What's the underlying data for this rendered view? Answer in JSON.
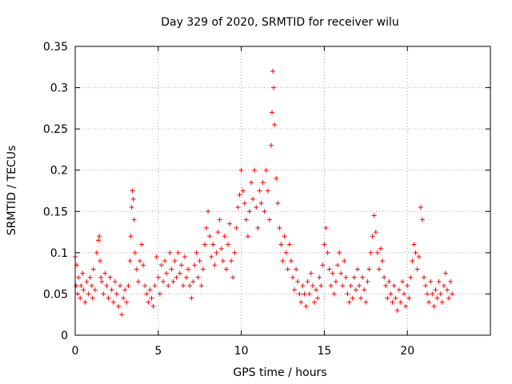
{
  "chart_data": {
    "type": "scatter",
    "title": "Day 329 of 2020, SRMTID for receiver wilu",
    "xlabel": "GPS time / hours",
    "ylabel": "SRMTID / TECUs",
    "xlim": [
      0,
      25
    ],
    "ylim": [
      0,
      0.35
    ],
    "xticks": [
      0,
      5,
      10,
      15,
      20
    ],
    "xtick_labels": [
      "0",
      "5",
      "10",
      "15",
      "20"
    ],
    "yticks": [
      0,
      0.05,
      0.1,
      0.15,
      0.2,
      0.25,
      0.3,
      0.35
    ],
    "ytick_labels": [
      "0",
      "0.05",
      "0.1",
      "0.15",
      "0.2",
      "0.25",
      "0.3",
      "0.35"
    ],
    "grid": true,
    "marker": "+",
    "color": "#ff0000",
    "series": [
      {
        "name": "SRMTID",
        "points": [
          [
            0.0,
            0.095
          ],
          [
            0.05,
            0.06
          ],
          [
            0.1,
            0.085
          ],
          [
            0.15,
            0.05
          ],
          [
            0.2,
            0.07
          ],
          [
            0.3,
            0.045
          ],
          [
            0.35,
            0.06
          ],
          [
            0.45,
            0.075
          ],
          [
            0.5,
            0.055
          ],
          [
            0.6,
            0.04
          ],
          [
            0.7,
            0.065
          ],
          [
            0.8,
            0.05
          ],
          [
            0.9,
            0.07
          ],
          [
            1.0,
            0.06
          ],
          [
            1.05,
            0.045
          ],
          [
            1.1,
            0.08
          ],
          [
            1.2,
            0.055
          ],
          [
            1.3,
            0.1
          ],
          [
            1.4,
            0.115
          ],
          [
            1.45,
            0.12
          ],
          [
            1.5,
            0.09
          ],
          [
            1.55,
            0.07
          ],
          [
            1.6,
            0.065
          ],
          [
            1.7,
            0.05
          ],
          [
            1.8,
            0.075
          ],
          [
            1.9,
            0.06
          ],
          [
            2.0,
            0.045
          ],
          [
            2.1,
            0.07
          ],
          [
            2.2,
            0.055
          ],
          [
            2.3,
            0.04
          ],
          [
            2.4,
            0.065
          ],
          [
            2.5,
            0.05
          ],
          [
            2.6,
            0.035
          ],
          [
            2.7,
            0.06
          ],
          [
            2.8,
            0.025
          ],
          [
            2.9,
            0.045
          ],
          [
            3.0,
            0.055
          ],
          [
            3.1,
            0.04
          ],
          [
            3.2,
            0.06
          ],
          [
            3.3,
            0.09
          ],
          [
            3.35,
            0.12
          ],
          [
            3.4,
            0.155
          ],
          [
            3.45,
            0.175
          ],
          [
            3.5,
            0.165
          ],
          [
            3.55,
            0.14
          ],
          [
            3.6,
            0.1
          ],
          [
            3.7,
            0.08
          ],
          [
            3.8,
            0.065
          ],
          [
            3.9,
            0.09
          ],
          [
            4.0,
            0.11
          ],
          [
            4.1,
            0.085
          ],
          [
            4.2,
            0.06
          ],
          [
            4.3,
            0.05
          ],
          [
            4.4,
            0.04
          ],
          [
            4.5,
            0.055
          ],
          [
            4.6,
            0.045
          ],
          [
            4.7,
            0.035
          ],
          [
            4.8,
            0.06
          ],
          [
            4.9,
            0.095
          ],
          [
            5.0,
            0.07
          ],
          [
            5.1,
            0.05
          ],
          [
            5.2,
            0.085
          ],
          [
            5.3,
            0.065
          ],
          [
            5.4,
            0.09
          ],
          [
            5.5,
            0.075
          ],
          [
            5.6,
            0.06
          ],
          [
            5.7,
            0.1
          ],
          [
            5.8,
            0.08
          ],
          [
            5.9,
            0.065
          ],
          [
            6.0,
            0.09
          ],
          [
            6.1,
            0.07
          ],
          [
            6.2,
            0.1
          ],
          [
            6.3,
            0.075
          ],
          [
            6.4,
            0.085
          ],
          [
            6.5,
            0.06
          ],
          [
            6.6,
            0.095
          ],
          [
            6.7,
            0.07
          ],
          [
            6.8,
            0.08
          ],
          [
            6.9,
            0.06
          ],
          [
            7.0,
            0.045
          ],
          [
            7.1,
            0.065
          ],
          [
            7.2,
            0.085
          ],
          [
            7.3,
            0.1
          ],
          [
            7.4,
            0.07
          ],
          [
            7.5,
            0.09
          ],
          [
            7.6,
            0.06
          ],
          [
            7.7,
            0.08
          ],
          [
            7.8,
            0.11
          ],
          [
            7.9,
            0.13
          ],
          [
            8.0,
            0.15
          ],
          [
            8.1,
            0.12
          ],
          [
            8.2,
            0.095
          ],
          [
            8.3,
            0.11
          ],
          [
            8.4,
            0.085
          ],
          [
            8.5,
            0.1
          ],
          [
            8.6,
            0.125
          ],
          [
            8.7,
            0.14
          ],
          [
            8.8,
            0.105
          ],
          [
            8.9,
            0.09
          ],
          [
            9.0,
            0.12
          ],
          [
            9.1,
            0.08
          ],
          [
            9.2,
            0.11
          ],
          [
            9.3,
            0.135
          ],
          [
            9.4,
            0.09
          ],
          [
            9.5,
            0.07
          ],
          [
            9.6,
            0.1
          ],
          [
            9.7,
            0.13
          ],
          [
            9.8,
            0.155
          ],
          [
            9.9,
            0.17
          ],
          [
            10.0,
            0.2
          ],
          [
            10.1,
            0.175
          ],
          [
            10.2,
            0.16
          ],
          [
            10.3,
            0.14
          ],
          [
            10.4,
            0.12
          ],
          [
            10.5,
            0.15
          ],
          [
            10.6,
            0.185
          ],
          [
            10.7,
            0.165
          ],
          [
            10.8,
            0.2
          ],
          [
            10.9,
            0.155
          ],
          [
            11.0,
            0.13
          ],
          [
            11.1,
            0.175
          ],
          [
            11.2,
            0.16
          ],
          [
            11.3,
            0.185
          ],
          [
            11.4,
            0.15
          ],
          [
            11.5,
            0.2
          ],
          [
            11.6,
            0.175
          ],
          [
            11.7,
            0.14
          ],
          [
            11.8,
            0.23
          ],
          [
            11.85,
            0.27
          ],
          [
            11.9,
            0.32
          ],
          [
            11.95,
            0.3
          ],
          [
            12.0,
            0.255
          ],
          [
            12.1,
            0.19
          ],
          [
            12.2,
            0.16
          ],
          [
            12.3,
            0.13
          ],
          [
            12.4,
            0.11
          ],
          [
            12.5,
            0.09
          ],
          [
            12.6,
            0.12
          ],
          [
            12.7,
            0.1
          ],
          [
            12.8,
            0.08
          ],
          [
            12.9,
            0.11
          ],
          [
            13.0,
            0.09
          ],
          [
            13.1,
            0.07
          ],
          [
            13.2,
            0.055
          ],
          [
            13.3,
            0.08
          ],
          [
            13.4,
            0.065
          ],
          [
            13.5,
            0.05
          ],
          [
            13.6,
            0.04
          ],
          [
            13.7,
            0.06
          ],
          [
            13.8,
            0.05
          ],
          [
            13.9,
            0.035
          ],
          [
            14.0,
            0.065
          ],
          [
            14.1,
            0.05
          ],
          [
            14.2,
            0.075
          ],
          [
            14.3,
            0.06
          ],
          [
            14.4,
            0.04
          ],
          [
            14.5,
            0.055
          ],
          [
            14.6,
            0.045
          ],
          [
            14.7,
            0.07
          ],
          [
            14.8,
            0.06
          ],
          [
            14.9,
            0.085
          ],
          [
            15.0,
            0.11
          ],
          [
            15.1,
            0.13
          ],
          [
            15.2,
            0.1
          ],
          [
            15.3,
            0.08
          ],
          [
            15.4,
            0.06
          ],
          [
            15.5,
            0.075
          ],
          [
            15.6,
            0.05
          ],
          [
            15.7,
            0.065
          ],
          [
            15.8,
            0.085
          ],
          [
            15.9,
            0.1
          ],
          [
            16.0,
            0.075
          ],
          [
            16.1,
            0.06
          ],
          [
            16.2,
            0.09
          ],
          [
            16.3,
            0.07
          ],
          [
            16.4,
            0.05
          ],
          [
            16.5,
            0.04
          ],
          [
            16.6,
            0.06
          ],
          [
            16.7,
            0.045
          ],
          [
            16.8,
            0.07
          ],
          [
            16.9,
            0.055
          ],
          [
            17.0,
            0.08
          ],
          [
            17.1,
            0.06
          ],
          [
            17.2,
            0.045
          ],
          [
            17.3,
            0.07
          ],
          [
            17.4,
            0.055
          ],
          [
            17.5,
            0.04
          ],
          [
            17.6,
            0.065
          ],
          [
            17.7,
            0.08
          ],
          [
            17.8,
            0.1
          ],
          [
            17.9,
            0.12
          ],
          [
            18.0,
            0.145
          ],
          [
            18.1,
            0.125
          ],
          [
            18.2,
            0.1
          ],
          [
            18.3,
            0.08
          ],
          [
            18.4,
            0.105
          ],
          [
            18.5,
            0.09
          ],
          [
            18.6,
            0.07
          ],
          [
            18.7,
            0.06
          ],
          [
            18.8,
            0.045
          ],
          [
            18.9,
            0.065
          ],
          [
            19.0,
            0.05
          ],
          [
            19.1,
            0.04
          ],
          [
            19.2,
            0.06
          ],
          [
            19.3,
            0.045
          ],
          [
            19.4,
            0.03
          ],
          [
            19.5,
            0.055
          ],
          [
            19.6,
            0.04
          ],
          [
            19.7,
            0.065
          ],
          [
            19.8,
            0.05
          ],
          [
            19.9,
            0.035
          ],
          [
            20.0,
            0.06
          ],
          [
            20.1,
            0.045
          ],
          [
            20.2,
            0.07
          ],
          [
            20.3,
            0.09
          ],
          [
            20.4,
            0.11
          ],
          [
            20.5,
            0.1
          ],
          [
            20.6,
            0.08
          ],
          [
            20.7,
            0.095
          ],
          [
            20.8,
            0.155
          ],
          [
            20.9,
            0.14
          ],
          [
            21.0,
            0.07
          ],
          [
            21.1,
            0.06
          ],
          [
            21.2,
            0.05
          ],
          [
            21.3,
            0.04
          ],
          [
            21.4,
            0.065
          ],
          [
            21.5,
            0.05
          ],
          [
            21.6,
            0.035
          ],
          [
            21.7,
            0.055
          ],
          [
            21.8,
            0.045
          ],
          [
            21.9,
            0.065
          ],
          [
            22.0,
            0.05
          ],
          [
            22.1,
            0.04
          ],
          [
            22.2,
            0.06
          ],
          [
            22.3,
            0.075
          ],
          [
            22.4,
            0.055
          ],
          [
            22.5,
            0.045
          ],
          [
            22.6,
            0.065
          ],
          [
            22.7,
            0.05
          ]
        ]
      }
    ]
  }
}
